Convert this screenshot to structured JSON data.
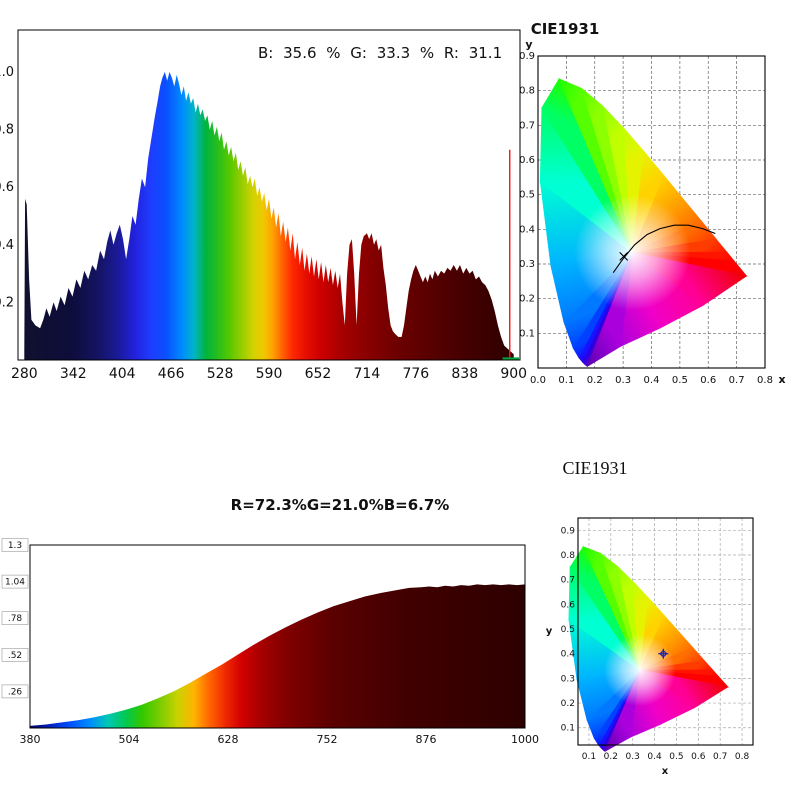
{
  "page": {
    "background": "#ffffff"
  },
  "cie_common": {
    "white_point": [
      0.333,
      0.333
    ],
    "locus": [
      [
        0.1741,
        0.005,
        "#5a00b4"
      ],
      [
        0.1666,
        0.0089,
        "#4400cc"
      ],
      [
        0.1566,
        0.0177,
        "#2a00e8"
      ],
      [
        0.144,
        0.0297,
        "#1414ff"
      ],
      [
        0.1241,
        0.0578,
        "#0040ff"
      ],
      [
        0.0913,
        0.1327,
        "#0078ff"
      ],
      [
        0.0454,
        0.295,
        "#00b4ff"
      ],
      [
        0.0082,
        0.5384,
        "#00ffd2"
      ],
      [
        0.0139,
        0.7502,
        "#00ff64"
      ],
      [
        0.0743,
        0.8338,
        "#1eff00"
      ],
      [
        0.1547,
        0.8059,
        "#55ff00"
      ],
      [
        0.2296,
        0.7543,
        "#8cff00"
      ],
      [
        0.3016,
        0.6923,
        "#bfff00"
      ],
      [
        0.3731,
        0.6245,
        "#e6f300"
      ],
      [
        0.4441,
        0.5547,
        "#ffd200"
      ],
      [
        0.5125,
        0.4866,
        "#ffa000"
      ],
      [
        0.5752,
        0.4242,
        "#ff6e00"
      ],
      [
        0.627,
        0.3725,
        "#ff3c00"
      ],
      [
        0.6658,
        0.334,
        "#ff1400"
      ],
      [
        0.6915,
        0.3083,
        "#ff0000"
      ],
      [
        0.7347,
        0.2653,
        "#f00000"
      ],
      [
        0.58,
        0.18,
        "#ff0096"
      ],
      [
        0.43,
        0.115,
        "#f000c8"
      ],
      [
        0.29,
        0.062,
        "#aa00dc"
      ]
    ]
  },
  "chart_data": [
    {
      "id": "top-spectrum",
      "type": "area",
      "rgb_label": "B: 35.6 % G: 33.3 % R: 31.1",
      "x_range": [
        272,
        908
      ],
      "y_scale_max": 1.146,
      "x_ticks": [
        280,
        342,
        404,
        466,
        528,
        590,
        652,
        714,
        776,
        838,
        900
      ],
      "x_tick_labels": [
        "280",
        "342",
        "404",
        "466",
        "528",
        "590",
        "652",
        "714",
        "776",
        "838",
        "900"
      ],
      "y_ticks": [
        0.2,
        0.4,
        0.6,
        0.8,
        1.0
      ],
      "y_tick_labels": [
        "0.2",
        "0.4",
        "0.6",
        "0.8",
        "1.0"
      ],
      "red_line": {
        "wavelength": 895,
        "height": 0.73,
        "color": "#ff1111"
      },
      "baseline": {
        "from": 886,
        "color": "#00a33c"
      },
      "gradient": [
        [
          0,
          "#10102e"
        ],
        [
          0.097,
          "#0d0d3c"
        ],
        [
          0.153,
          "#141464"
        ],
        [
          0.194,
          "#1b1b9e"
        ],
        [
          0.226,
          "#2222dd"
        ],
        [
          0.258,
          "#1f3cff"
        ],
        [
          0.29,
          "#0a50ff"
        ],
        [
          0.323,
          "#008cff"
        ],
        [
          0.347,
          "#00b4c8"
        ],
        [
          0.371,
          "#00b43c"
        ],
        [
          0.395,
          "#28be1e"
        ],
        [
          0.419,
          "#55c800"
        ],
        [
          0.444,
          "#96cd00"
        ],
        [
          0.468,
          "#d2d200"
        ],
        [
          0.489,
          "#f0c800"
        ],
        [
          0.508,
          "#ffa000"
        ],
        [
          0.527,
          "#ff6400"
        ],
        [
          0.548,
          "#ff2800"
        ],
        [
          0.573,
          "#e90f00"
        ],
        [
          0.605,
          "#cd0000"
        ],
        [
          0.645,
          "#aa0000"
        ],
        [
          0.694,
          "#8c0000"
        ],
        [
          0.758,
          "#6e0000"
        ],
        [
          0.839,
          "#550000"
        ],
        [
          0.919,
          "#400000"
        ],
        [
          1,
          "#2d0000"
        ]
      ],
      "points": [
        [
          280,
          0.03
        ],
        [
          281,
          0.56
        ],
        [
          283,
          0.54
        ],
        [
          286,
          0.28
        ],
        [
          289,
          0.14
        ],
        [
          294,
          0.12
        ],
        [
          300,
          0.11
        ],
        [
          304,
          0.14
        ],
        [
          308,
          0.18
        ],
        [
          312,
          0.15
        ],
        [
          317,
          0.2
        ],
        [
          321,
          0.17
        ],
        [
          326,
          0.22
        ],
        [
          331,
          0.19
        ],
        [
          336,
          0.25
        ],
        [
          341,
          0.22
        ],
        [
          346,
          0.28
        ],
        [
          351,
          0.25
        ],
        [
          356,
          0.31
        ],
        [
          361,
          0.28
        ],
        [
          366,
          0.33
        ],
        [
          371,
          0.31
        ],
        [
          376,
          0.38
        ],
        [
          381,
          0.35
        ],
        [
          385,
          0.41
        ],
        [
          389,
          0.45
        ],
        [
          393,
          0.4
        ],
        [
          397,
          0.44
        ],
        [
          401,
          0.47
        ],
        [
          405,
          0.42
        ],
        [
          409,
          0.35
        ],
        [
          413,
          0.42
        ],
        [
          417,
          0.5
        ],
        [
          421,
          0.47
        ],
        [
          425,
          0.56
        ],
        [
          429,
          0.63
        ],
        [
          433,
          0.6
        ],
        [
          437,
          0.7
        ],
        [
          441,
          0.77
        ],
        [
          445,
          0.84
        ],
        [
          449,
          0.9
        ],
        [
          452,
          0.95
        ],
        [
          455,
          0.98
        ],
        [
          458,
          1.0
        ],
        [
          461,
          0.97
        ],
        [
          464,
          1.0
        ],
        [
          467,
          0.98
        ],
        [
          470,
          0.95
        ],
        [
          473,
          0.99
        ],
        [
          476,
          0.96
        ],
        [
          479,
          0.92
        ],
        [
          482,
          0.95
        ],
        [
          485,
          0.9
        ],
        [
          488,
          0.93
        ],
        [
          491,
          0.89
        ],
        [
          494,
          0.91
        ],
        [
          497,
          0.86
        ],
        [
          500,
          0.89
        ],
        [
          503,
          0.85
        ],
        [
          506,
          0.87
        ],
        [
          509,
          0.83
        ],
        [
          512,
          0.85
        ],
        [
          515,
          0.8
        ],
        [
          518,
          0.83
        ],
        [
          521,
          0.78
        ],
        [
          524,
          0.81
        ],
        [
          527,
          0.76
        ],
        [
          530,
          0.79
        ],
        [
          533,
          0.73
        ],
        [
          536,
          0.76
        ],
        [
          539,
          0.71
        ],
        [
          542,
          0.74
        ],
        [
          545,
          0.69
        ],
        [
          548,
          0.72
        ],
        [
          551,
          0.66
        ],
        [
          554,
          0.69
        ],
        [
          557,
          0.64
        ],
        [
          560,
          0.67
        ],
        [
          563,
          0.61
        ],
        [
          566,
          0.64
        ],
        [
          569,
          0.6
        ],
        [
          572,
          0.63
        ],
        [
          575,
          0.57
        ],
        [
          578,
          0.6
        ],
        [
          581,
          0.55
        ],
        [
          584,
          0.58
        ],
        [
          587,
          0.52
        ],
        [
          590,
          0.56
        ],
        [
          593,
          0.49
        ],
        [
          596,
          0.53
        ],
        [
          599,
          0.46
        ],
        [
          602,
          0.51
        ],
        [
          605,
          0.43
        ],
        [
          608,
          0.48
        ],
        [
          611,
          0.41
        ],
        [
          614,
          0.46
        ],
        [
          617,
          0.38
        ],
        [
          620,
          0.44
        ],
        [
          623,
          0.35
        ],
        [
          626,
          0.41
        ],
        [
          629,
          0.33
        ],
        [
          632,
          0.39
        ],
        [
          635,
          0.31
        ],
        [
          638,
          0.37
        ],
        [
          641,
          0.3
        ],
        [
          644,
          0.36
        ],
        [
          647,
          0.29
        ],
        [
          650,
          0.35
        ],
        [
          653,
          0.28
        ],
        [
          656,
          0.34
        ],
        [
          659,
          0.27
        ],
        [
          662,
          0.33
        ],
        [
          665,
          0.27
        ],
        [
          668,
          0.32
        ],
        [
          671,
          0.26
        ],
        [
          674,
          0.31
        ],
        [
          677,
          0.25
        ],
        [
          680,
          0.3
        ],
        [
          683,
          0.2
        ],
        [
          686,
          0.12
        ],
        [
          689,
          0.3
        ],
        [
          692,
          0.4
        ],
        [
          695,
          0.42
        ],
        [
          698,
          0.3
        ],
        [
          701,
          0.12
        ],
        [
          704,
          0.3
        ],
        [
          707,
          0.4
        ],
        [
          710,
          0.43
        ],
        [
          714,
          0.44
        ],
        [
          717,
          0.42
        ],
        [
          720,
          0.44
        ],
        [
          723,
          0.4
        ],
        [
          726,
          0.42
        ],
        [
          729,
          0.38
        ],
        [
          732,
          0.4
        ],
        [
          735,
          0.32
        ],
        [
          738,
          0.26
        ],
        [
          741,
          0.18
        ],
        [
          744,
          0.12
        ],
        [
          747,
          0.1
        ],
        [
          750,
          0.09
        ],
        [
          754,
          0.08
        ],
        [
          758,
          0.08
        ],
        [
          761,
          0.12
        ],
        [
          764,
          0.18
        ],
        [
          767,
          0.24
        ],
        [
          770,
          0.28
        ],
        [
          773,
          0.31
        ],
        [
          776,
          0.33
        ],
        [
          779,
          0.31
        ],
        [
          782,
          0.29
        ],
        [
          785,
          0.27
        ],
        [
          788,
          0.29
        ],
        [
          791,
          0.27
        ],
        [
          794,
          0.3
        ],
        [
          797,
          0.28
        ],
        [
          800,
          0.31
        ],
        [
          804,
          0.29
        ],
        [
          808,
          0.31
        ],
        [
          812,
          0.3
        ],
        [
          816,
          0.32
        ],
        [
          820,
          0.31
        ],
        [
          824,
          0.33
        ],
        [
          828,
          0.31
        ],
        [
          832,
          0.33
        ],
        [
          836,
          0.3
        ],
        [
          840,
          0.32
        ],
        [
          844,
          0.3
        ],
        [
          848,
          0.31
        ],
        [
          852,
          0.28
        ],
        [
          856,
          0.29
        ],
        [
          860,
          0.27
        ],
        [
          864,
          0.26
        ],
        [
          868,
          0.24
        ],
        [
          872,
          0.21
        ],
        [
          876,
          0.17
        ],
        [
          880,
          0.12
        ],
        [
          884,
          0.08
        ],
        [
          888,
          0.05
        ],
        [
          892,
          0.04
        ],
        [
          896,
          0.03
        ],
        [
          900,
          0.02
        ]
      ]
    },
    {
      "id": "top-cie1931",
      "type": "chromaticity",
      "title": "CIE1931",
      "x_axis_label": "x",
      "y_axis_label": "y",
      "x_range": [
        0,
        0.8
      ],
      "y_range": [
        0,
        0.9
      ],
      "x_ticks": [
        0,
        0.1,
        0.2,
        0.3,
        0.4,
        0.5,
        0.6,
        0.7,
        0.8
      ],
      "x_tick_labels": [
        "0.0",
        "0.1",
        "0.2",
        "0.3",
        "0.4",
        "0.5",
        "0.6",
        "0.7",
        "0.8"
      ],
      "y_ticks": [
        0.1,
        0.2,
        0.3,
        0.4,
        0.5,
        0.6,
        0.7,
        0.8,
        0.9
      ],
      "y_tick_labels": [
        "0.1",
        "0.2",
        "0.3",
        "0.4",
        "0.5",
        "0.6",
        "0.7",
        "0.8",
        "0.9"
      ],
      "planck_curve": [
        [
          0.265,
          0.275
        ],
        [
          0.3,
          0.315
        ],
        [
          0.34,
          0.355
        ],
        [
          0.385,
          0.385
        ],
        [
          0.43,
          0.402
        ],
        [
          0.48,
          0.412
        ],
        [
          0.53,
          0.412
        ],
        [
          0.58,
          0.402
        ],
        [
          0.625,
          0.388
        ]
      ],
      "cross_marker": [
        0.302,
        0.322
      ]
    },
    {
      "id": "bottom-spectrum",
      "type": "area",
      "title": "R=72.3%G=21.0%B=6.7%",
      "x_range": [
        380,
        1000
      ],
      "y_scale_max": 1.3,
      "x_ticks": [
        380,
        504,
        628,
        752,
        876,
        1000
      ],
      "x_tick_labels": [
        "380",
        "504",
        "628",
        "752",
        "876",
        "1000"
      ],
      "y_ticks": [
        1.3,
        1.04,
        0.78,
        0.52,
        0.26
      ],
      "y_tick_labels": [
        "1.3",
        "1.04",
        ".78",
        ".52",
        ".26"
      ],
      "gradient": [
        [
          0,
          "#000060"
        ],
        [
          0.04,
          "#0020c0"
        ],
        [
          0.081,
          "#0050ff"
        ],
        [
          0.121,
          "#008cff"
        ],
        [
          0.158,
          "#00c8b4"
        ],
        [
          0.194,
          "#00c850"
        ],
        [
          0.226,
          "#32c800"
        ],
        [
          0.266,
          "#82cd00"
        ],
        [
          0.298,
          "#c8d200"
        ],
        [
          0.331,
          "#ffb400"
        ],
        [
          0.363,
          "#ff6400"
        ],
        [
          0.395,
          "#f02800"
        ],
        [
          0.427,
          "#d20000"
        ],
        [
          0.468,
          "#a50000"
        ],
        [
          0.516,
          "#820000"
        ],
        [
          0.613,
          "#5a0000"
        ],
        [
          0.758,
          "#410000"
        ],
        [
          1,
          "#2d0000"
        ]
      ],
      "points": [
        [
          380,
          0.015
        ],
        [
          400,
          0.025
        ],
        [
          420,
          0.04
        ],
        [
          440,
          0.055
        ],
        [
          460,
          0.075
        ],
        [
          480,
          0.1
        ],
        [
          500,
          0.13
        ],
        [
          520,
          0.165
        ],
        [
          540,
          0.21
        ],
        [
          560,
          0.26
        ],
        [
          580,
          0.32
        ],
        [
          600,
          0.385
        ],
        [
          620,
          0.45
        ],
        [
          640,
          0.52
        ],
        [
          660,
          0.59
        ],
        [
          680,
          0.655
        ],
        [
          700,
          0.715
        ],
        [
          720,
          0.77
        ],
        [
          740,
          0.82
        ],
        [
          760,
          0.865
        ],
        [
          780,
          0.9
        ],
        [
          800,
          0.935
        ],
        [
          820,
          0.96
        ],
        [
          840,
          0.98
        ],
        [
          855,
          0.995
        ],
        [
          870,
          1.0
        ],
        [
          880,
          1.005
        ],
        [
          890,
          1.0
        ],
        [
          900,
          1.01
        ],
        [
          910,
          1.005
        ],
        [
          920,
          1.015
        ],
        [
          930,
          1.01
        ],
        [
          940,
          1.02
        ],
        [
          950,
          1.015
        ],
        [
          960,
          1.02
        ],
        [
          970,
          1.015
        ],
        [
          980,
          1.02
        ],
        [
          990,
          1.015
        ],
        [
          1000,
          1.02
        ]
      ]
    },
    {
      "id": "bottom-cie1931",
      "type": "chromaticity",
      "title": "CIE1931",
      "x_axis_label": "x",
      "y_axis_label": "y",
      "x_range": [
        0.05,
        0.85
      ],
      "y_range": [
        0.03,
        0.95
      ],
      "x_ticks": [
        0.1,
        0.2,
        0.3,
        0.4,
        0.5,
        0.6,
        0.7,
        0.8
      ],
      "x_tick_labels": [
        "0.1",
        "0.2",
        "0.3",
        "0.4",
        "0.5",
        "0.6",
        "0.7",
        "0.8"
      ],
      "y_ticks": [
        0.1,
        0.2,
        0.3,
        0.4,
        0.5,
        0.6,
        0.7,
        0.8,
        0.9
      ],
      "y_tick_labels": [
        "0.1",
        "0.2",
        "0.3",
        "0.4",
        "0.5",
        "0.6",
        "0.7",
        "0.8",
        "0.9"
      ],
      "marker": {
        "x": 0.44,
        "y": 0.4,
        "color": "#2020b0"
      }
    }
  ]
}
